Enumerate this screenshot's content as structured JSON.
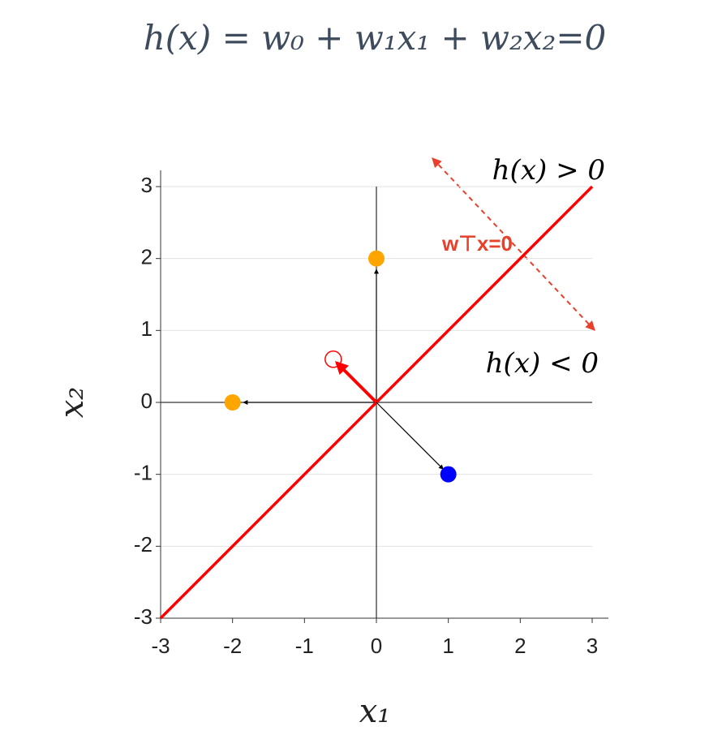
{
  "chart_data": {
    "type": "scatter",
    "title": "h(x) = w₀ + w₁x₁ + w₂x₂=0",
    "x_label": "x₁",
    "y_label": "x₂",
    "annotations": [
      "h(x) > 0",
      "h(x) < 0",
      "w⊤x=0"
    ],
    "xlim": [
      -3,
      3
    ],
    "ylim": [
      -3,
      3
    ],
    "xticks": [
      -3,
      -2,
      -1,
      0,
      1,
      2,
      3
    ],
    "yticks": [
      -3,
      -2,
      -1,
      0,
      1,
      2,
      3
    ],
    "grid": true,
    "boundary": {
      "color": "#ff0000",
      "x": [
        -3,
        3
      ],
      "y": [
        -3,
        3
      ]
    },
    "arrows": [
      {
        "color": "#000000",
        "x": [
          0,
          0
        ],
        "y": [
          0,
          1.85
        ]
      },
      {
        "color": "#000000",
        "x": [
          0,
          -1.85
        ],
        "y": [
          0,
          0
        ]
      },
      {
        "color": "#000000",
        "x": [
          0,
          0.93
        ],
        "y": [
          0,
          -0.93
        ]
      },
      {
        "color": "#ff0000",
        "x": [
          0,
          -0.55
        ],
        "y": [
          0,
          0.55
        ]
      }
    ],
    "series": [
      {
        "color": "#ffa500",
        "x": [
          0,
          -2
        ],
        "y": [
          2,
          0
        ]
      },
      {
        "color": "#0000ff",
        "x": [
          1
        ],
        "y": [
          -1
        ]
      },
      {
        "color": "#ff0000",
        "x": [
          -0.6
        ],
        "y": [
          0.6
        ],
        "marker": "open"
      }
    ]
  }
}
